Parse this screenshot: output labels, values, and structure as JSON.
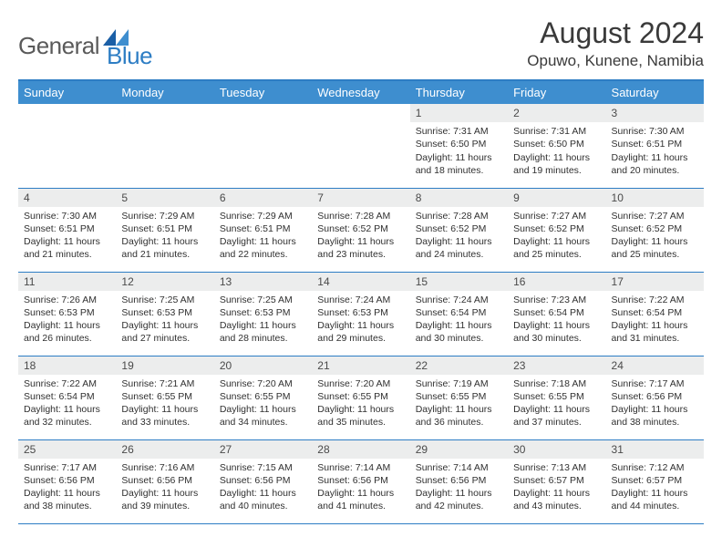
{
  "brand": {
    "word1": "General",
    "word2": "Blue"
  },
  "title": "August 2024",
  "location": "Opuwo, Kunene, Namibia",
  "colors": {
    "header_bg": "#3e8ecf",
    "border": "#2d7dc4",
    "daynum_bg": "#eceded",
    "text": "#303030",
    "brand_gray": "#5a5a5a",
    "brand_blue": "#2d7dc4"
  },
  "day_names": [
    "Sunday",
    "Monday",
    "Tuesday",
    "Wednesday",
    "Thursday",
    "Friday",
    "Saturday"
  ],
  "first_weekday": 4,
  "days": [
    {
      "n": 1,
      "sunrise": "7:31 AM",
      "sunset": "6:50 PM",
      "dl": "11 hours and 18 minutes."
    },
    {
      "n": 2,
      "sunrise": "7:31 AM",
      "sunset": "6:50 PM",
      "dl": "11 hours and 19 minutes."
    },
    {
      "n": 3,
      "sunrise": "7:30 AM",
      "sunset": "6:51 PM",
      "dl": "11 hours and 20 minutes."
    },
    {
      "n": 4,
      "sunrise": "7:30 AM",
      "sunset": "6:51 PM",
      "dl": "11 hours and 21 minutes."
    },
    {
      "n": 5,
      "sunrise": "7:29 AM",
      "sunset": "6:51 PM",
      "dl": "11 hours and 21 minutes."
    },
    {
      "n": 6,
      "sunrise": "7:29 AM",
      "sunset": "6:51 PM",
      "dl": "11 hours and 22 minutes."
    },
    {
      "n": 7,
      "sunrise": "7:28 AM",
      "sunset": "6:52 PM",
      "dl": "11 hours and 23 minutes."
    },
    {
      "n": 8,
      "sunrise": "7:28 AM",
      "sunset": "6:52 PM",
      "dl": "11 hours and 24 minutes."
    },
    {
      "n": 9,
      "sunrise": "7:27 AM",
      "sunset": "6:52 PM",
      "dl": "11 hours and 25 minutes."
    },
    {
      "n": 10,
      "sunrise": "7:27 AM",
      "sunset": "6:52 PM",
      "dl": "11 hours and 25 minutes."
    },
    {
      "n": 11,
      "sunrise": "7:26 AM",
      "sunset": "6:53 PM",
      "dl": "11 hours and 26 minutes."
    },
    {
      "n": 12,
      "sunrise": "7:25 AM",
      "sunset": "6:53 PM",
      "dl": "11 hours and 27 minutes."
    },
    {
      "n": 13,
      "sunrise": "7:25 AM",
      "sunset": "6:53 PM",
      "dl": "11 hours and 28 minutes."
    },
    {
      "n": 14,
      "sunrise": "7:24 AM",
      "sunset": "6:53 PM",
      "dl": "11 hours and 29 minutes."
    },
    {
      "n": 15,
      "sunrise": "7:24 AM",
      "sunset": "6:54 PM",
      "dl": "11 hours and 30 minutes."
    },
    {
      "n": 16,
      "sunrise": "7:23 AM",
      "sunset": "6:54 PM",
      "dl": "11 hours and 30 minutes."
    },
    {
      "n": 17,
      "sunrise": "7:22 AM",
      "sunset": "6:54 PM",
      "dl": "11 hours and 31 minutes."
    },
    {
      "n": 18,
      "sunrise": "7:22 AM",
      "sunset": "6:54 PM",
      "dl": "11 hours and 32 minutes."
    },
    {
      "n": 19,
      "sunrise": "7:21 AM",
      "sunset": "6:55 PM",
      "dl": "11 hours and 33 minutes."
    },
    {
      "n": 20,
      "sunrise": "7:20 AM",
      "sunset": "6:55 PM",
      "dl": "11 hours and 34 minutes."
    },
    {
      "n": 21,
      "sunrise": "7:20 AM",
      "sunset": "6:55 PM",
      "dl": "11 hours and 35 minutes."
    },
    {
      "n": 22,
      "sunrise": "7:19 AM",
      "sunset": "6:55 PM",
      "dl": "11 hours and 36 minutes."
    },
    {
      "n": 23,
      "sunrise": "7:18 AM",
      "sunset": "6:55 PM",
      "dl": "11 hours and 37 minutes."
    },
    {
      "n": 24,
      "sunrise": "7:17 AM",
      "sunset": "6:56 PM",
      "dl": "11 hours and 38 minutes."
    },
    {
      "n": 25,
      "sunrise": "7:17 AM",
      "sunset": "6:56 PM",
      "dl": "11 hours and 38 minutes."
    },
    {
      "n": 26,
      "sunrise": "7:16 AM",
      "sunset": "6:56 PM",
      "dl": "11 hours and 39 minutes."
    },
    {
      "n": 27,
      "sunrise": "7:15 AM",
      "sunset": "6:56 PM",
      "dl": "11 hours and 40 minutes."
    },
    {
      "n": 28,
      "sunrise": "7:14 AM",
      "sunset": "6:56 PM",
      "dl": "11 hours and 41 minutes."
    },
    {
      "n": 29,
      "sunrise": "7:14 AM",
      "sunset": "6:56 PM",
      "dl": "11 hours and 42 minutes."
    },
    {
      "n": 30,
      "sunrise": "7:13 AM",
      "sunset": "6:57 PM",
      "dl": "11 hours and 43 minutes."
    },
    {
      "n": 31,
      "sunrise": "7:12 AM",
      "sunset": "6:57 PM",
      "dl": "11 hours and 44 minutes."
    }
  ],
  "labels": {
    "sunrise": "Sunrise:",
    "sunset": "Sunset:",
    "daylight": "Daylight:"
  }
}
